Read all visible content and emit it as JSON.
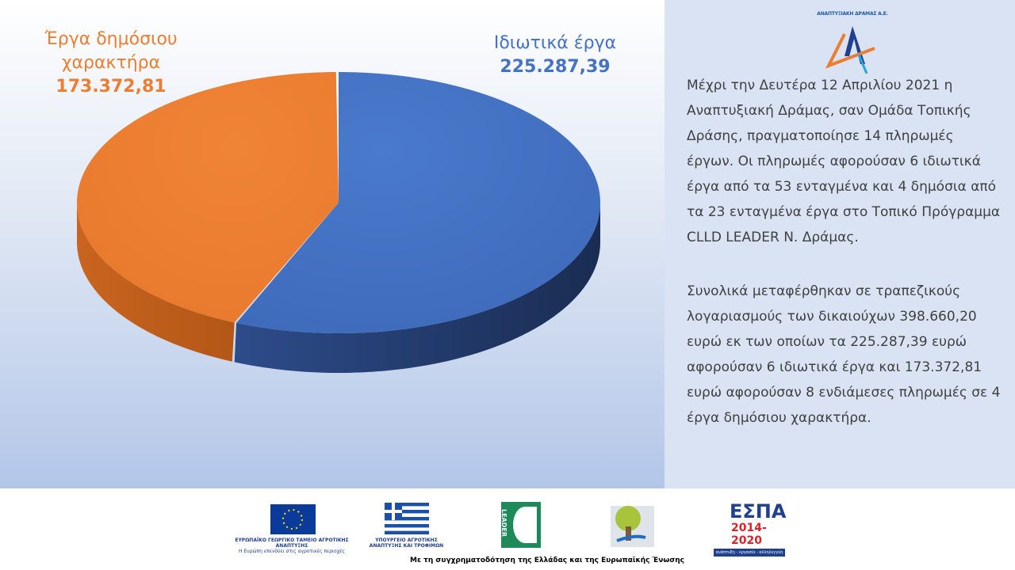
{
  "chart_data": {
    "type": "pie",
    "style": "3d",
    "slices": [
      {
        "label": "Ιδιωτικά έργα",
        "value": 225287.39,
        "value_label": "225.287,39",
        "color": "#4472c4"
      },
      {
        "label": "Έργα δημόσιου χαρακτήρα",
        "value": 173372.81,
        "value_label": "173.372,81",
        "color": "#ed7d31"
      }
    ]
  },
  "labels": {
    "public_line1": "Έργα δημόσιου",
    "public_line2": "χαρακτήρα",
    "public_value": "173.372,81",
    "private_name": "Ιδιωτικά έργα",
    "private_value": "225.287,39"
  },
  "logo": {
    "company": "ΑΝΑΠΤΥΞΙΑΚΗ ΔΡΑΜΑΣ Α.Ε."
  },
  "text": {
    "paragraph1": "Μέχρι την Δευτέρα 12 Απριλίου 2021 η Αναπτυξιακή Δράμας, σαν Ομάδα Τοπικής Δράσης, πραγματοποίησε 14 πληρωμές έργων. Οι πληρωμές αφορούσαν 6 ιδιωτικά έργα από τα 53 ενταγμένα και 4 δημόσια από τα 23 ενταγμένα έργα στο Τοπικό Πρόγραμμα CLLD LEADER Ν. Δράμας.",
    "paragraph2": "Συνολικά μεταφέρθηκαν σε τραπεζικούς λογαριασμούς των δικαιούχων 398.660,20 ευρώ εκ των οποίων τα 225.287,39 ευρώ αφορούσαν 6 ιδιωτικά έργα και 173.372,81 ευρώ αφορούσαν 8 ενδιάμεσες πληρωμές σε 4 έργα δημόσιου χαρακτήρα."
  },
  "footer": {
    "eafrd_line1": "ΕΥΡΩΠΑΪΚΟ ΓΕΩΡΓΙΚΟ ΤΑΜΕΙΟ ΑΓΡΟΤΙΚΗΣ ΑΝΑΠΤΥΞΗΣ",
    "eafrd_line2": "Η Ευρώπη επενδύει στις αγροτικές περιοχές",
    "ministry_line1": "ΥΠΟΥΡΓΕΙΟ ΑΓΡΟΤΙΚΗΣ",
    "ministry_line2": "ΑΝΑΠΤΥΞΗΣ ΚΑΙ ΤΡΟΦΙΜΩΝ",
    "leader": "LEADER",
    "espa_title": "ΕΣΠΑ",
    "espa_years": "2014-2020",
    "espa_tagline": "ανάπτυξη - εργασία - αλληλεγγύη",
    "cofunding": "Με τη συγχρηματοδότηση της Ελλάδας και της Ευρωπαϊκής Ένωσης"
  }
}
